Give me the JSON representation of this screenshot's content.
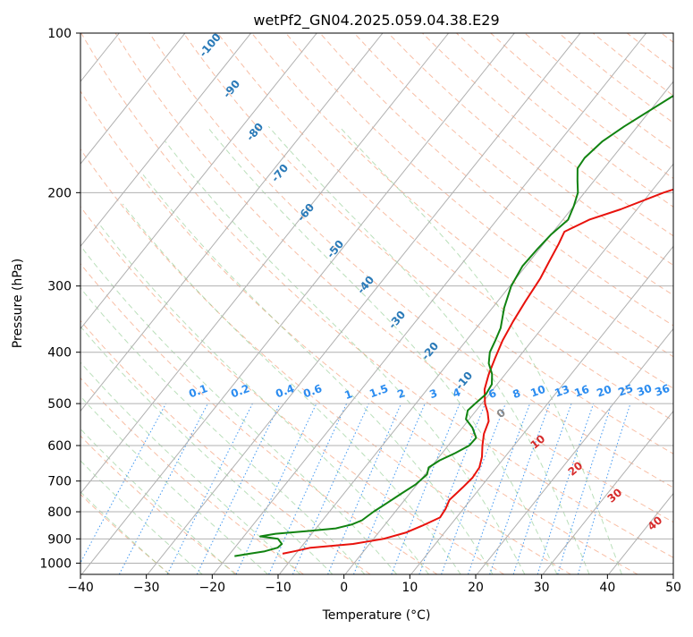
{
  "chart_data": {
    "type": "line",
    "title": "wetPf2_GN04.2025.059.04.38.E29",
    "xlabel": "Temperature (°C)",
    "ylabel": "Pressure (hPa)",
    "xlim": [
      -40,
      50
    ],
    "ylim": [
      1050,
      100
    ],
    "y_scale": "log",
    "grid": true,
    "x_ticks": [
      -40,
      -30,
      -20,
      -10,
      0,
      10,
      20,
      30,
      40,
      50
    ],
    "y_ticks": [
      100,
      200,
      300,
      400,
      500,
      600,
      700,
      800,
      900,
      1000
    ],
    "series": [
      {
        "color": "#e8120c",
        "points": [
          {
            "p": 960,
            "t": -12
          },
          {
            "p": 950,
            "t": -10.5
          },
          {
            "p": 935,
            "t": -8.5
          },
          {
            "p": 920,
            "t": -2.5
          },
          {
            "p": 900,
            "t": 1.5
          },
          {
            "p": 875,
            "t": 4.2
          },
          {
            "p": 850,
            "t": 5.8
          },
          {
            "p": 820,
            "t": 7.5
          },
          {
            "p": 790,
            "t": 7.3
          },
          {
            "p": 760,
            "t": 6.8
          },
          {
            "p": 720,
            "t": 7.3
          },
          {
            "p": 690,
            "t": 7.6
          },
          {
            "p": 660,
            "t": 7.4
          },
          {
            "p": 630,
            "t": 6.5
          },
          {
            "p": 600,
            "t": 5.2
          },
          {
            "p": 570,
            "t": 4
          },
          {
            "p": 540,
            "t": 3.2
          },
          {
            "p": 520,
            "t": 2
          },
          {
            "p": 500,
            "t": 0.5
          },
          {
            "p": 470,
            "t": -1.3
          },
          {
            "p": 440,
            "t": -2.5
          },
          {
            "p": 410,
            "t": -3.5
          },
          {
            "p": 380,
            "t": -4.5
          },
          {
            "p": 350,
            "t": -5.2
          },
          {
            "p": 320,
            "t": -5.8
          },
          {
            "p": 290,
            "t": -6.3
          },
          {
            "p": 270,
            "t": -7
          },
          {
            "p": 250,
            "t": -7.7
          },
          {
            "p": 237,
            "t": -8.3
          },
          {
            "p": 225,
            "t": -6
          },
          {
            "p": 215,
            "t": -2.5
          },
          {
            "p": 200,
            "t": 2
          },
          {
            "p": 195,
            "t": 4
          },
          {
            "p": 180,
            "t": 9
          },
          {
            "p": 165,
            "t": 12.5
          },
          {
            "p": 150,
            "t": 14.5
          },
          {
            "p": 140,
            "t": 16.3
          },
          {
            "p": 125,
            "t": 20
          },
          {
            "p": 115,
            "t": 22.5
          },
          {
            "p": 100,
            "t": 27
          }
        ]
      },
      {
        "color": "#118311",
        "points": [
          {
            "p": 970,
            "t": -19
          },
          {
            "p": 960,
            "t": -17
          },
          {
            "p": 950,
            "t": -15
          },
          {
            "p": 935,
            "t": -13.5
          },
          {
            "p": 920,
            "t": -13.3
          },
          {
            "p": 900,
            "t": -14.5
          },
          {
            "p": 890,
            "t": -17.5
          },
          {
            "p": 880,
            "t": -15.5
          },
          {
            "p": 870,
            "t": -11
          },
          {
            "p": 860,
            "t": -7
          },
          {
            "p": 845,
            "t": -5
          },
          {
            "p": 830,
            "t": -4
          },
          {
            "p": 800,
            "t": -3.3
          },
          {
            "p": 770,
            "t": -2.3
          },
          {
            "p": 740,
            "t": -1.3
          },
          {
            "p": 710,
            "t": -0.2
          },
          {
            "p": 680,
            "t": 0.3
          },
          {
            "p": 660,
            "t": -0.3
          },
          {
            "p": 640,
            "t": 0.5
          },
          {
            "p": 620,
            "t": 2
          },
          {
            "p": 600,
            "t": 3.2
          },
          {
            "p": 580,
            "t": 3.3
          },
          {
            "p": 555,
            "t": 1.5
          },
          {
            "p": 535,
            "t": -0.5
          },
          {
            "p": 515,
            "t": -1.3
          },
          {
            "p": 500,
            "t": -1
          },
          {
            "p": 480,
            "t": -0.5
          },
          {
            "p": 460,
            "t": -0.8
          },
          {
            "p": 440,
            "t": -2
          },
          {
            "p": 420,
            "t": -3.8
          },
          {
            "p": 400,
            "t": -5
          },
          {
            "p": 380,
            "t": -5.6
          },
          {
            "p": 360,
            "t": -6.3
          },
          {
            "p": 330,
            "t": -8.2
          },
          {
            "p": 300,
            "t": -9.8
          },
          {
            "p": 275,
            "t": -10.5
          },
          {
            "p": 255,
            "t": -10.3
          },
          {
            "p": 240,
            "t": -10
          },
          {
            "p": 225,
            "t": -9.2
          },
          {
            "p": 212,
            "t": -10
          },
          {
            "p": 200,
            "t": -11
          },
          {
            "p": 190,
            "t": -12.5
          },
          {
            "p": 180,
            "t": -14
          },
          {
            "p": 172,
            "t": -14.2
          },
          {
            "p": 160,
            "t": -13.5
          },
          {
            "p": 150,
            "t": -12
          },
          {
            "p": 130,
            "t": -8
          },
          {
            "p": 115,
            "t": -4.5
          },
          {
            "p": 100,
            "t": -0.5
          }
        ]
      }
    ],
    "annotations": {
      "dry_adiabats": [
        "-100",
        "-90",
        "-80",
        "-70",
        "-60",
        "-50",
        "-40",
        "-30",
        "-20",
        "-10"
      ],
      "mixing_ratios": [
        "0.1",
        "0.2",
        "0.4",
        "0.6",
        "1",
        "1.5",
        "2",
        "3",
        "4",
        "6",
        "8",
        "10",
        "13",
        "16",
        "20",
        "25",
        "30",
        "36"
      ],
      "moist_adiabats": [
        "0",
        "10",
        "20",
        "30",
        "40"
      ]
    },
    "colors": {
      "temperature": "#e8120c",
      "dewpoint": "#118311",
      "dry_adiabat_label": "#2a7ab8",
      "mixing_ratio_label": "#2b8cf0",
      "moist_adiabat_label": "#d62b2b"
    }
  }
}
